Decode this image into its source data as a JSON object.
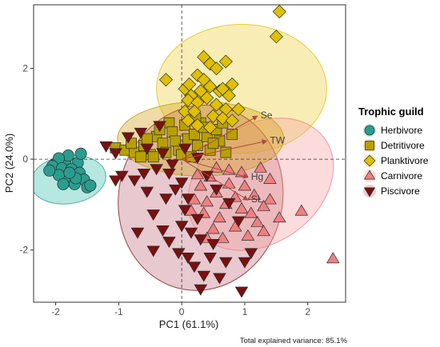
{
  "chart_data": {
    "type": "scatter",
    "xlabel": "PC1 (61.1%)",
    "ylabel": "PC2 (24.0%)",
    "xlim": [
      -2.35,
      2.6
    ],
    "ylim": [
      -3.15,
      3.4
    ],
    "xticks": [
      -2,
      -1,
      0,
      1,
      2
    ],
    "yticks": [
      -2,
      0,
      2
    ],
    "caption": "Total explained variance: 85.1%",
    "legend": {
      "title": "Trophic guild",
      "position": "right"
    },
    "grid": false,
    "series": [
      {
        "name": "Herbivore",
        "marker": "circle",
        "color": "#2a9d8f",
        "ellipse_color": "#40c0b0",
        "ellipse": {
          "cx": -1.8,
          "cy": -0.45,
          "rx": 0.6,
          "ry": 0.53,
          "angle_deg": -8
        },
        "points": [
          [
            -2.0,
            -0.1
          ],
          [
            -1.85,
            -0.05
          ],
          [
            -1.65,
            -0.08
          ],
          [
            -1.6,
            0.12
          ],
          [
            -1.8,
            0.08
          ],
          [
            -1.95,
            0.02
          ],
          [
            -2.05,
            -0.15
          ],
          [
            -1.9,
            -0.2
          ],
          [
            -1.75,
            -0.22
          ],
          [
            -1.62,
            -0.3
          ],
          [
            -1.55,
            -0.45
          ],
          [
            -1.8,
            -0.45
          ],
          [
            -1.95,
            -0.35
          ],
          [
            -1.7,
            -0.55
          ],
          [
            -1.5,
            -0.62
          ],
          [
            -1.45,
            -0.58
          ],
          [
            -1.88,
            -0.55
          ],
          [
            -2.1,
            -0.25
          ],
          [
            -1.68,
            -0.42
          ],
          [
            -1.78,
            -0.3
          ]
        ]
      },
      {
        "name": "Detritivore",
        "marker": "square",
        "color": "#b8a000",
        "ellipse_color": "#d4a017",
        "ellipse": {
          "cx": 0.3,
          "cy": 0.45,
          "rx": 1.32,
          "ry": 0.82,
          "angle_deg": 0
        },
        "points": [
          [
            -1.05,
            0.25
          ],
          [
            -0.9,
            0.2
          ],
          [
            -0.75,
            0.15
          ],
          [
            -0.6,
            0.3
          ],
          [
            -0.5,
            0.1
          ],
          [
            -0.4,
            0.5
          ],
          [
            -0.3,
            0.35
          ],
          [
            -0.2,
            0.8
          ],
          [
            -0.15,
            0.6
          ],
          [
            -0.05,
            0.2
          ],
          [
            0.05,
            0.75
          ],
          [
            0.1,
            0.45
          ],
          [
            0.2,
            0.55
          ],
          [
            0.25,
            0.3
          ],
          [
            0.3,
            0.8
          ],
          [
            0.4,
            0.5
          ],
          [
            0.45,
            0.2
          ],
          [
            0.55,
            0.65
          ],
          [
            0.6,
            0.4
          ],
          [
            0.7,
            0.15
          ],
          [
            -0.8,
            0.35
          ],
          [
            -0.45,
            0.05
          ],
          [
            -0.25,
            0.15
          ],
          [
            0.0,
            0.1
          ],
          [
            0.15,
            0.05
          ],
          [
            0.35,
            0.7
          ],
          [
            0.5,
            0.35
          ],
          [
            -0.65,
            0.05
          ],
          [
            -0.1,
            0.4
          ],
          [
            0.8,
            0.55
          ],
          [
            -0.35,
            0.65
          ],
          [
            0.22,
            0.9
          ],
          [
            -0.55,
            0.45
          ],
          [
            0.65,
            0.8
          ]
        ]
      },
      {
        "name": "Planktivore",
        "marker": "diamond",
        "color": "#e0c000",
        "ellipse_color": "#f0d040",
        "ellipse": {
          "cx": 0.95,
          "cy": 1.55,
          "rx": 1.35,
          "ry": 1.42,
          "angle_deg": 0
        },
        "points": [
          [
            1.55,
            3.25
          ],
          [
            1.5,
            2.7
          ],
          [
            0.7,
            2.15
          ],
          [
            0.35,
            2.25
          ],
          [
            0.45,
            2.1
          ],
          [
            0.55,
            2.0
          ],
          [
            0.25,
            1.85
          ],
          [
            0.35,
            1.75
          ],
          [
            0.45,
            1.6
          ],
          [
            0.6,
            1.5
          ],
          [
            0.8,
            1.65
          ],
          [
            0.3,
            1.5
          ],
          [
            0.15,
            1.4
          ],
          [
            0.1,
            1.3
          ],
          [
            0.25,
            1.25
          ],
          [
            0.4,
            1.35
          ],
          [
            0.55,
            1.2
          ],
          [
            0.7,
            1.1
          ],
          [
            0.9,
            1.1
          ],
          [
            0.75,
            1.4
          ],
          [
            0.05,
            1.05
          ],
          [
            0.2,
            1.05
          ],
          [
            0.5,
            0.95
          ],
          [
            0.65,
            0.9
          ],
          [
            0.1,
            0.85
          ],
          [
            0.25,
            0.75
          ],
          [
            0.45,
            0.7
          ],
          [
            0.8,
            0.85
          ],
          [
            -0.25,
            1.75
          ],
          [
            0.05,
            1.55
          ],
          [
            0.12,
            1.65
          ],
          [
            0.65,
            1.55
          ]
        ]
      },
      {
        "name": "Carnivore",
        "marker": "triangle-up",
        "color": "#f08080",
        "ellipse_color": "#f5a0a0",
        "ellipse": {
          "cx": 1.25,
          "cy": -0.55,
          "rx": 1.25,
          "ry": 1.3,
          "angle_deg": -35
        },
        "points": [
          [
            2.4,
            -2.2
          ],
          [
            1.9,
            -1.15
          ],
          [
            1.4,
            -0.9
          ],
          [
            1.55,
            -1.3
          ],
          [
            1.2,
            -1.4
          ],
          [
            1.3,
            -1.05
          ],
          [
            1.15,
            -0.8
          ],
          [
            1.0,
            -0.6
          ],
          [
            0.95,
            -1.1
          ],
          [
            0.85,
            -0.85
          ],
          [
            0.75,
            -0.55
          ],
          [
            0.7,
            -1.0
          ],
          [
            0.6,
            -1.3
          ],
          [
            0.55,
            -0.75
          ],
          [
            0.45,
            -0.4
          ],
          [
            0.4,
            -0.95
          ],
          [
            0.35,
            -1.2
          ],
          [
            0.3,
            -0.6
          ],
          [
            0.2,
            -0.9
          ],
          [
            0.15,
            -1.15
          ],
          [
            0.5,
            -1.55
          ],
          [
            0.65,
            -1.75
          ],
          [
            0.85,
            -1.5
          ],
          [
            1.05,
            -1.7
          ],
          [
            1.3,
            -1.6
          ],
          [
            0.95,
            -0.3
          ],
          [
            1.25,
            -0.2
          ],
          [
            1.4,
            -0.45
          ],
          [
            0.4,
            -1.75
          ],
          [
            0.55,
            -0.2
          ],
          [
            0.75,
            -0.25
          ],
          [
            1.1,
            -1.2
          ],
          [
            0.25,
            -0.35
          ]
        ]
      },
      {
        "name": "Piscivore",
        "marker": "triangle-down",
        "color": "#7a1010",
        "ellipse_color": "#c07080",
        "ellipse": {
          "cx": 0.3,
          "cy": -0.85,
          "rx": 1.3,
          "ry": 2.05,
          "angle_deg": 12
        },
        "points": [
          [
            0.45,
            -2.15
          ],
          [
            0.7,
            -2.25
          ],
          [
            0.1,
            -2.15
          ],
          [
            -0.05,
            -2.05
          ],
          [
            0.2,
            -2.35
          ],
          [
            0.35,
            -2.55
          ],
          [
            -0.2,
            -1.8
          ],
          [
            -0.3,
            -1.55
          ],
          [
            0.0,
            -1.45
          ],
          [
            0.15,
            -1.6
          ],
          [
            0.3,
            -1.75
          ],
          [
            0.5,
            -1.85
          ],
          [
            -0.45,
            -1.2
          ],
          [
            -0.25,
            -0.85
          ],
          [
            -0.1,
            -0.65
          ],
          [
            0.05,
            -1.1
          ],
          [
            0.25,
            -1.3
          ],
          [
            -0.55,
            -0.7
          ],
          [
            -0.75,
            -0.45
          ],
          [
            -0.95,
            -0.35
          ],
          [
            -1.05,
            -0.45
          ],
          [
            -0.6,
            -0.3
          ],
          [
            -0.4,
            -0.2
          ],
          [
            -0.2,
            -0.3
          ],
          [
            0.0,
            -0.5
          ],
          [
            -1.2,
            0.3
          ],
          [
            -1.05,
            0.15
          ],
          [
            -0.85,
            0.5
          ],
          [
            -0.65,
            0.6
          ],
          [
            -0.35,
            0.75
          ],
          [
            -0.55,
            0.25
          ],
          [
            -0.3,
            0.15
          ],
          [
            -0.15,
            -0.1
          ],
          [
            0.05,
            0.25
          ],
          [
            0.25,
            0.05
          ],
          [
            0.4,
            -0.35
          ],
          [
            0.55,
            -0.65
          ],
          [
            0.75,
            -0.95
          ],
          [
            0.9,
            -1.35
          ],
          [
            1.1,
            -2.05
          ],
          [
            1.0,
            -2.25
          ],
          [
            0.95,
            -2.9
          ],
          [
            -0.45,
            -2.0
          ],
          [
            0.3,
            -2.85
          ],
          [
            0.6,
            -2.6
          ],
          [
            -0.7,
            -1.6
          ],
          [
            0.1,
            -0.85
          ]
        ]
      }
    ],
    "loadings": [
      {
        "label": "Se",
        "x": 1.2,
        "y": 0.95
      },
      {
        "label": "TW",
        "x": 1.35,
        "y": 0.4
      },
      {
        "label": "Hg",
        "x": 1.05,
        "y": -0.4
      },
      {
        "label": "SL",
        "x": 1.05,
        "y": -0.9
      }
    ]
  }
}
